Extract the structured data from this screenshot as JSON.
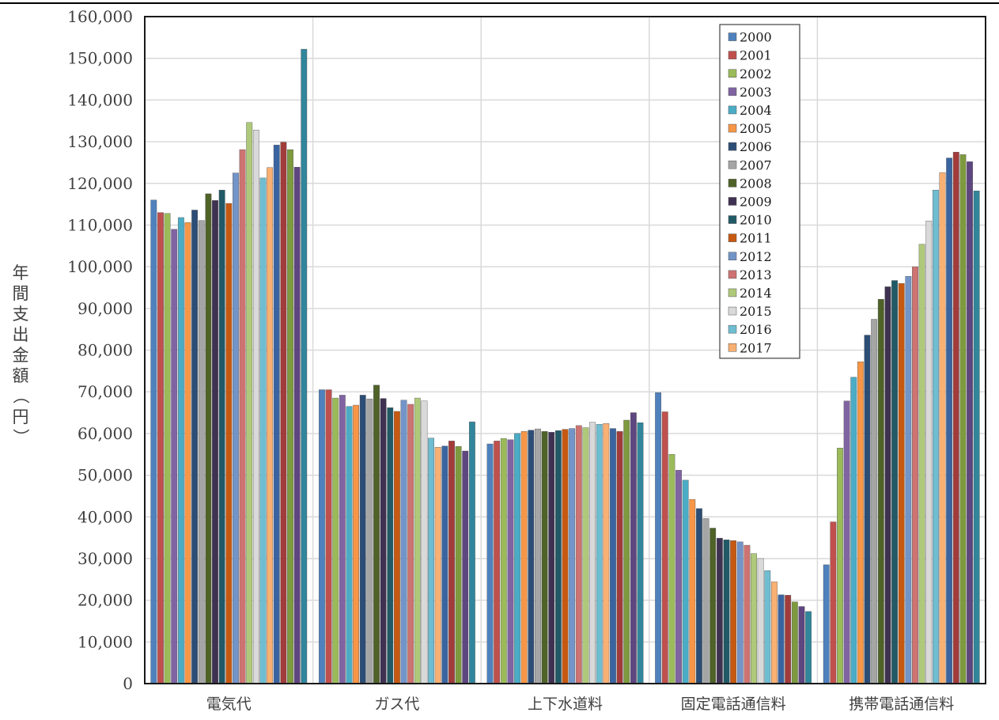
{
  "chart_data": {
    "type": "bar",
    "ylabel": "年間支出金額（円）",
    "ylim": [
      0,
      160000
    ],
    "yticks": [
      0,
      10000,
      20000,
      30000,
      40000,
      50000,
      60000,
      70000,
      80000,
      90000,
      100000,
      110000,
      120000,
      130000,
      140000,
      150000,
      160000
    ],
    "ytick_labels": [
      "0",
      "10,000",
      "20,000",
      "30,000",
      "40,000",
      "50,000",
      "60,000",
      "70,000",
      "80,000",
      "90,000",
      "100,000",
      "110,000",
      "120,000",
      "130,000",
      "140,000",
      "150,000",
      "160,000"
    ],
    "categories": [
      "電気代",
      "ガス代",
      "上下水道料",
      "固定電話通信料",
      "携帯電話通信料"
    ],
    "grid": true,
    "legend_position": "top-right",
    "series": [
      {
        "name": "2000",
        "color": "#4f81bd",
        "values": [
          116000,
          70500,
          57500,
          69800,
          28500
        ]
      },
      {
        "name": "2001",
        "color": "#c0504d",
        "values": [
          113000,
          70500,
          58200,
          65200,
          38800
        ]
      },
      {
        "name": "2002",
        "color": "#9bbb59",
        "values": [
          112800,
          68500,
          58800,
          55000,
          56500
        ]
      },
      {
        "name": "2003",
        "color": "#8064a2",
        "values": [
          109000,
          69200,
          58500,
          51200,
          67800
        ]
      },
      {
        "name": "2004",
        "color": "#4bacc6",
        "values": [
          111800,
          66500,
          60000,
          48800,
          73500
        ]
      },
      {
        "name": "2005",
        "color": "#f79646",
        "values": [
          110600,
          66800,
          60500,
          44200,
          77200
        ]
      },
      {
        "name": "2006",
        "color": "#2c4d75",
        "values": [
          113600,
          69200,
          60800,
          42000,
          83600
        ]
      },
      {
        "name": "2007",
        "color": "#a5a5a5",
        "values": [
          111100,
          68300,
          61100,
          39600,
          87400
        ]
      },
      {
        "name": "2008",
        "color": "#4f6228",
        "values": [
          117500,
          71600,
          60500,
          37300,
          92200
        ]
      },
      {
        "name": "2009",
        "color": "#3f3151",
        "values": [
          115900,
          68400,
          60300,
          34900,
          95200
        ]
      },
      {
        "name": "2010",
        "color": "#215967",
        "values": [
          118400,
          66200,
          60700,
          34500,
          96700
        ]
      },
      {
        "name": "2011",
        "color": "#c65911",
        "values": [
          115200,
          65300,
          61000,
          34300,
          96000
        ]
      },
      {
        "name": "2012",
        "color": "#7294c8",
        "values": [
          122500,
          68000,
          61200,
          34000,
          97700
        ]
      },
      {
        "name": "2013",
        "color": "#cd7371",
        "values": [
          128100,
          67000,
          61900,
          33200,
          100000
        ]
      },
      {
        "name": "2014",
        "color": "#afc97a",
        "values": [
          134600,
          68500,
          61400,
          31200,
          105400
        ]
      },
      {
        "name": "2015",
        "color": "#d9d9d9",
        "values": [
          132800,
          67800,
          62700,
          30000,
          111000
        ]
      },
      {
        "name": "2016",
        "color": "#6fbdd1",
        "values": [
          121300,
          58900,
          62200,
          27100,
          118400
        ]
      },
      {
        "name": "2017",
        "color": "#f9b073",
        "values": [
          123800,
          56700,
          62400,
          24400,
          122600
        ]
      },
      {
        "color": "#3a64a0",
        "values": [
          129200,
          57000,
          61200,
          21300,
          126100
        ]
      },
      {
        "color": "#a23c3a",
        "values": [
          129900,
          58200,
          60500,
          21200,
          127500
        ]
      },
      {
        "color": "#7e9a3e",
        "values": [
          128100,
          56900,
          63200,
          19600,
          126900
        ]
      },
      {
        "color": "#5e4680",
        "values": [
          123900,
          55800,
          65000,
          18500,
          125200
        ]
      },
      {
        "color": "#31869b",
        "values": [
          152200,
          62800,
          62600,
          17300,
          118200
        ]
      }
    ]
  }
}
